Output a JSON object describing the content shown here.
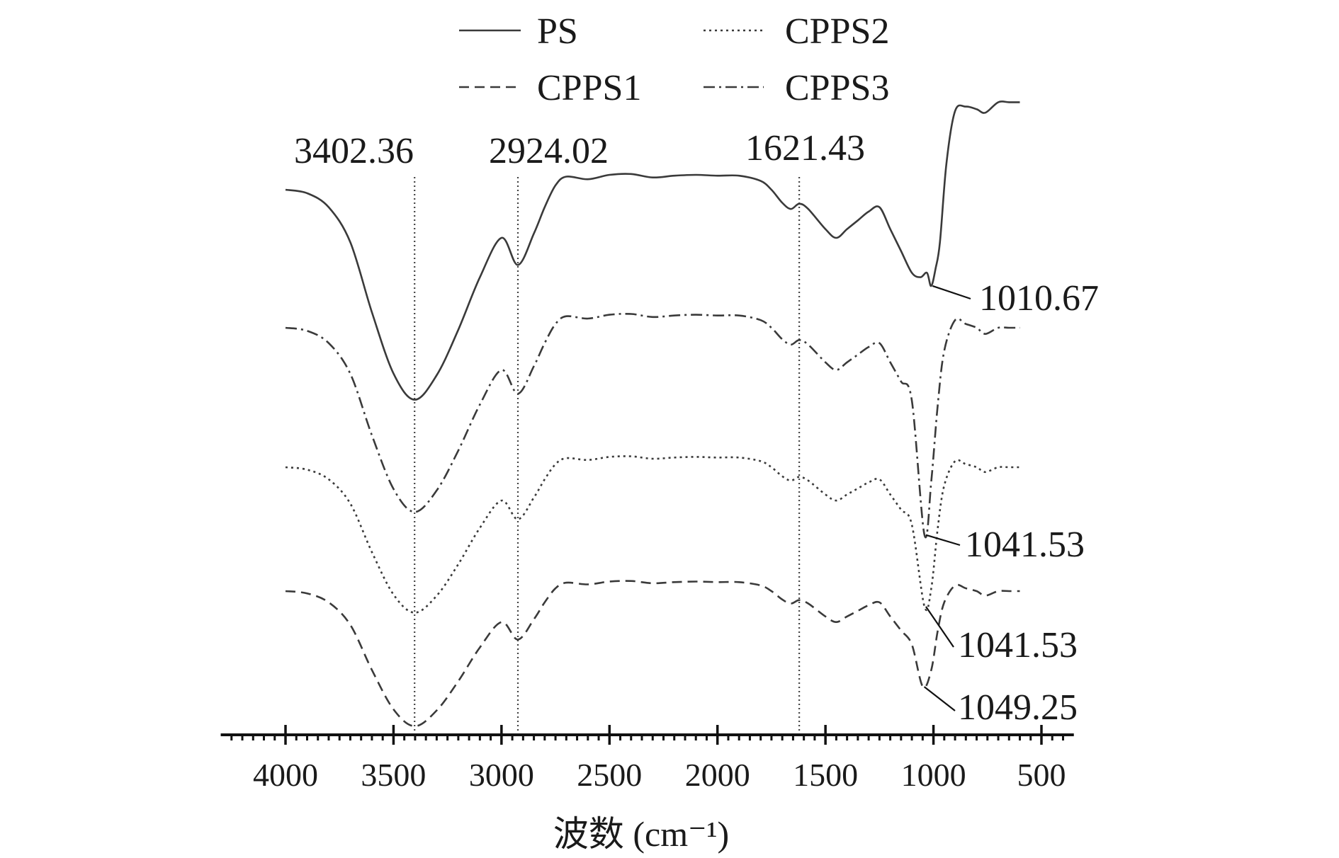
{
  "chart_data": {
    "type": "line",
    "title": "",
    "xlabel": "波数 (cm⁻¹)",
    "ylabel": "",
    "xlim": [
      4300,
      350
    ],
    "x_ticks": [
      4000,
      3500,
      3000,
      2500,
      2000,
      1500,
      1000,
      500
    ],
    "x_reversed": true,
    "grid": false,
    "legend_position": "top",
    "legend": [
      "PS",
      "CPPS2",
      "CPPS1",
      "CPPS3"
    ],
    "series": [
      {
        "name": "PS",
        "style": "solid",
        "x": [
          4000,
          3900,
          3800,
          3700,
          3600,
          3500,
          3402.36,
          3300,
          3200,
          3100,
          3000,
          2924.02,
          2850,
          2800,
          2750,
          2700,
          2600,
          2500,
          2400,
          2300,
          2200,
          2100,
          2000,
          1900,
          1800,
          1750,
          1700,
          1660,
          1621.43,
          1580,
          1500,
          1450,
          1400,
          1350,
          1300,
          1250,
          1200,
          1150,
          1100,
          1060,
          1030,
          1010.67,
          990,
          970,
          940,
          900,
          850,
          800,
          760,
          700,
          650,
          600
        ],
        "y": [
          0,
          -4,
          -20,
          -60,
          -140,
          -210,
          -240,
          -212,
          -160,
          -100,
          -55,
          -86,
          -50,
          -20,
          5,
          15,
          12,
          17,
          18,
          14,
          16,
          17,
          16,
          16,
          10,
          0,
          -15,
          -22,
          -16,
          -22,
          -45,
          -55,
          -45,
          -35,
          -25,
          -20,
          -45,
          -70,
          -95,
          -100,
          -95,
          -110,
          -90,
          -60,
          30,
          90,
          95,
          92,
          88,
          100,
          100,
          100
        ]
      },
      {
        "name": "CPPS3",
        "style": "dashdot",
        "x": [
          4000,
          3900,
          3800,
          3700,
          3600,
          3500,
          3402.36,
          3300,
          3200,
          3100,
          3000,
          2924.02,
          2850,
          2800,
          2750,
          2700,
          2600,
          2500,
          2400,
          2300,
          2200,
          2100,
          2000,
          1900,
          1800,
          1750,
          1700,
          1660,
          1621.43,
          1580,
          1500,
          1450,
          1400,
          1350,
          1300,
          1250,
          1200,
          1150,
          1100,
          1041.53,
          1010,
          980,
          950,
          900,
          850,
          800,
          760,
          700,
          650,
          600
        ],
        "y": [
          0,
          -4,
          -20,
          -60,
          -140,
          -210,
          -240,
          -212,
          -160,
          -100,
          -55,
          -86,
          -50,
          -20,
          5,
          15,
          12,
          17,
          18,
          14,
          16,
          17,
          16,
          16,
          10,
          0,
          -15,
          -22,
          -16,
          -22,
          -45,
          -55,
          -45,
          -35,
          -25,
          -20,
          -45,
          -70,
          -95,
          -270,
          -200,
          -100,
          -30,
          10,
          5,
          0,
          -8,
          0,
          0,
          0
        ]
      },
      {
        "name": "CPPS2",
        "style": "dotted",
        "x": [
          4000,
          3900,
          3800,
          3700,
          3600,
          3500,
          3402.36,
          3300,
          3200,
          3100,
          3000,
          2924.02,
          2850,
          2800,
          2750,
          2700,
          2600,
          2500,
          2400,
          2300,
          2200,
          2100,
          2000,
          1900,
          1800,
          1750,
          1700,
          1660,
          1621.43,
          1580,
          1500,
          1450,
          1400,
          1350,
          1300,
          1250,
          1200,
          1150,
          1100,
          1041.53,
          1010,
          980,
          950,
          900,
          850,
          800,
          760,
          700,
          650,
          600
        ],
        "y": [
          0,
          -4,
          -20,
          -60,
          -140,
          -210,
          -240,
          -212,
          -160,
          -100,
          -55,
          -86,
          -50,
          -20,
          5,
          15,
          12,
          17,
          18,
          14,
          16,
          17,
          16,
          16,
          10,
          0,
          -15,
          -22,
          -16,
          -22,
          -45,
          -55,
          -45,
          -35,
          -25,
          -20,
          -45,
          -70,
          -95,
          -230,
          -200,
          -100,
          -30,
          10,
          5,
          0,
          -8,
          0,
          0,
          0
        ]
      },
      {
        "name": "CPPS1",
        "style": "dashed",
        "x": [
          4000,
          3900,
          3800,
          3700,
          3600,
          3500,
          3402.36,
          3300,
          3200,
          3100,
          3000,
          2924.02,
          2850,
          2800,
          2750,
          2700,
          2600,
          2500,
          2400,
          2300,
          2200,
          2100,
          2000,
          1900,
          1800,
          1750,
          1700,
          1660,
          1621.43,
          1580,
          1500,
          1450,
          1400,
          1350,
          1300,
          1250,
          1200,
          1150,
          1100,
          1049.25,
          1010,
          980,
          950,
          900,
          850,
          800,
          760,
          700,
          650,
          600
        ],
        "y": [
          0,
          -4,
          -20,
          -60,
          -140,
          -210,
          -240,
          -212,
          -160,
          -100,
          -55,
          -86,
          -50,
          -20,
          5,
          15,
          12,
          17,
          18,
          14,
          16,
          17,
          16,
          16,
          10,
          0,
          -15,
          -22,
          -16,
          -22,
          -45,
          -55,
          -45,
          -35,
          -25,
          -20,
          -45,
          -70,
          -95,
          -170,
          -140,
          -70,
          -20,
          10,
          5,
          0,
          -8,
          0,
          0,
          0
        ]
      }
    ],
    "reference_lines": [
      3402.36,
      2924.02,
      1621.43
    ],
    "reference_labels": [
      "3402.36",
      "2924.02",
      "1621.43"
    ],
    "peak_labels": [
      {
        "series": "PS",
        "x": 1010.67,
        "text": "1010.67"
      },
      {
        "series": "CPPS3",
        "x": 1041.53,
        "text": "1041.53"
      },
      {
        "series": "CPPS2",
        "x": 1041.53,
        "text": "1041.53"
      },
      {
        "series": "CPPS1",
        "x": 1049.25,
        "text": "1049.25"
      }
    ]
  }
}
